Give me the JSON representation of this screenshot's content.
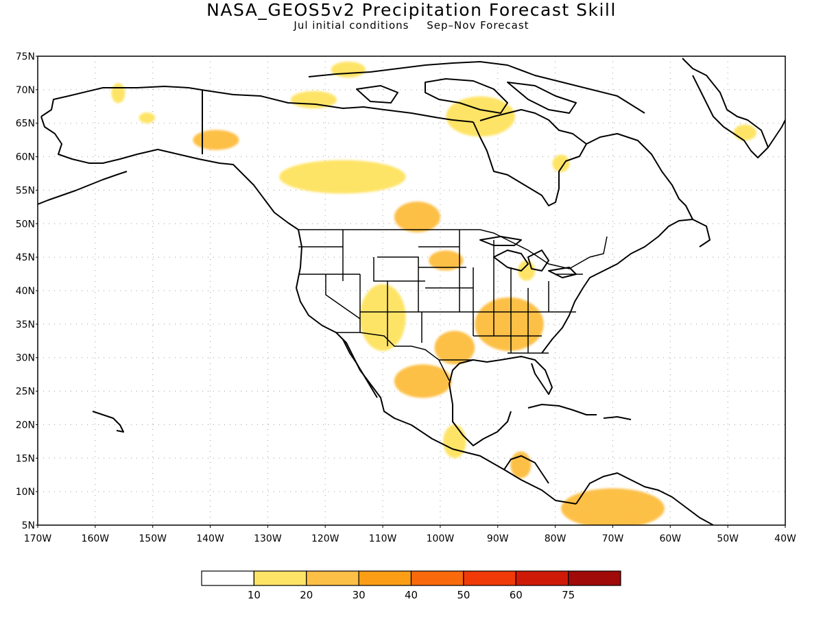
{
  "header": {
    "title": "NASA_GEOS5v2 Precipitation Forecast Skill",
    "subtitle_left": "Jul initial conditions",
    "subtitle_right": "Sep–Nov Forecast"
  },
  "map": {
    "lon_range": [
      -170,
      -40
    ],
    "lat_range": [
      5,
      75
    ],
    "lat_ticks": [
      "5N",
      "10N",
      "15N",
      "20N",
      "25N",
      "30N",
      "35N",
      "40N",
      "45N",
      "50N",
      "55N",
      "60N",
      "65N",
      "70N",
      "75N"
    ],
    "lon_ticks": [
      "170W",
      "160W",
      "150W",
      "140W",
      "130W",
      "120W",
      "110W",
      "100W",
      "90W",
      "80W",
      "70W",
      "60W",
      "50W",
      "40W"
    ],
    "grid": true,
    "coastline_color": "#000000",
    "skill_regions": [
      {
        "name": "central-canada",
        "level": 1,
        "lon": -117,
        "lat": 57,
        "rx": 11,
        "ry": 2.5
      },
      {
        "name": "alaska-yukon",
        "level": 2,
        "lon": -139,
        "lat": 62.5,
        "rx": 4,
        "ry": 1.5
      },
      {
        "name": "alaska-north",
        "level": 1,
        "lon": -156,
        "lat": 69.5,
        "rx": 1.2,
        "ry": 1.5
      },
      {
        "name": "alaska-west",
        "level": 1,
        "lon": -151,
        "lat": 65.8,
        "rx": 1.4,
        "ry": 0.8
      },
      {
        "name": "nunavut",
        "level": 1,
        "lon": -93,
        "lat": 66,
        "rx": 6,
        "ry": 3
      },
      {
        "name": "arctic-islands",
        "level": 1,
        "lon": -116,
        "lat": 73,
        "rx": 3,
        "ry": 1.2
      },
      {
        "name": "nw-territories",
        "level": 1,
        "lon": -122,
        "lat": 68.5,
        "rx": 4,
        "ry": 1.3
      },
      {
        "name": "prairies",
        "level": 2,
        "lon": -104,
        "lat": 51,
        "rx": 4,
        "ry": 2.3
      },
      {
        "name": "northern-plains",
        "level": 2,
        "lon": -99,
        "lat": 44.5,
        "rx": 3,
        "ry": 1.5
      },
      {
        "name": "four-corners",
        "level": 1,
        "lon": -110,
        "lat": 36,
        "rx": 4,
        "ry": 5
      },
      {
        "name": "texas",
        "level": 2,
        "lon": -97.5,
        "lat": 31.5,
        "rx": 3.5,
        "ry": 2.5
      },
      {
        "name": "tennessee-valley",
        "level": 2,
        "lon": -88,
        "lat": 35,
        "rx": 6,
        "ry": 4
      },
      {
        "name": "mexico-northeast",
        "level": 2,
        "lon": -103,
        "lat": 26.5,
        "rx": 5,
        "ry": 2.5
      },
      {
        "name": "mexico-south",
        "level": 1,
        "lon": -97.5,
        "lat": 17.5,
        "rx": 2,
        "ry": 2.5
      },
      {
        "name": "central-america",
        "level": 2,
        "lon": -86,
        "lat": 14,
        "rx": 1.8,
        "ry": 2
      },
      {
        "name": "colombia-venezuela",
        "level": 2,
        "lon": -70,
        "lat": 7.5,
        "rx": 9,
        "ry": 3
      },
      {
        "name": "hudson-bay-east",
        "level": 1,
        "lon": -79,
        "lat": 59,
        "rx": 1.5,
        "ry": 1.3
      },
      {
        "name": "greenland",
        "level": 1,
        "lon": -47,
        "lat": 63.6,
        "rx": 2,
        "ry": 1.2
      },
      {
        "name": "great-lakes",
        "level": 1,
        "lon": -85,
        "lat": 43,
        "rx": 1.5,
        "ry": 1.5
      }
    ]
  },
  "colorbar": {
    "labels": [
      "10",
      "20",
      "30",
      "40",
      "50",
      "60",
      "75"
    ],
    "colors": [
      "#ffffff",
      "#fee466",
      "#fdc046",
      "#fb9e16",
      "#f86a0c",
      "#f03a08",
      "#d01a08",
      "#a00a08"
    ]
  }
}
